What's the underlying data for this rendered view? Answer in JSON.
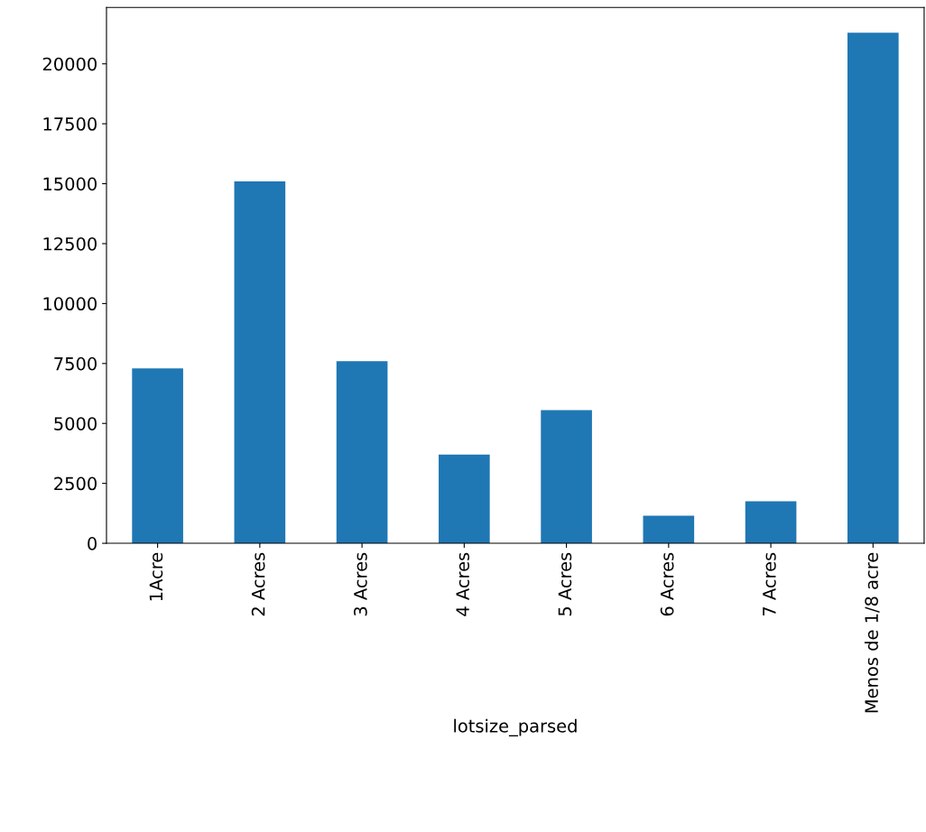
{
  "chart_data": {
    "type": "bar",
    "xlabel": "lotsize_parsed",
    "categories": [
      "1Acre",
      "2 Acres",
      "3 Acres",
      "4 Acres",
      "5 Acres",
      "6 Acres",
      "7 Acres",
      "Menos de 1/8 acre"
    ],
    "values": [
      7300,
      15100,
      7600,
      3700,
      5550,
      1150,
      1750,
      21300
    ],
    "color": "#1f77b4",
    "ylim": [
      0,
      22350
    ],
    "yticks": [
      0,
      2500,
      5000,
      7500,
      10000,
      12500,
      15000,
      17500,
      20000
    ],
    "grid": false
  }
}
